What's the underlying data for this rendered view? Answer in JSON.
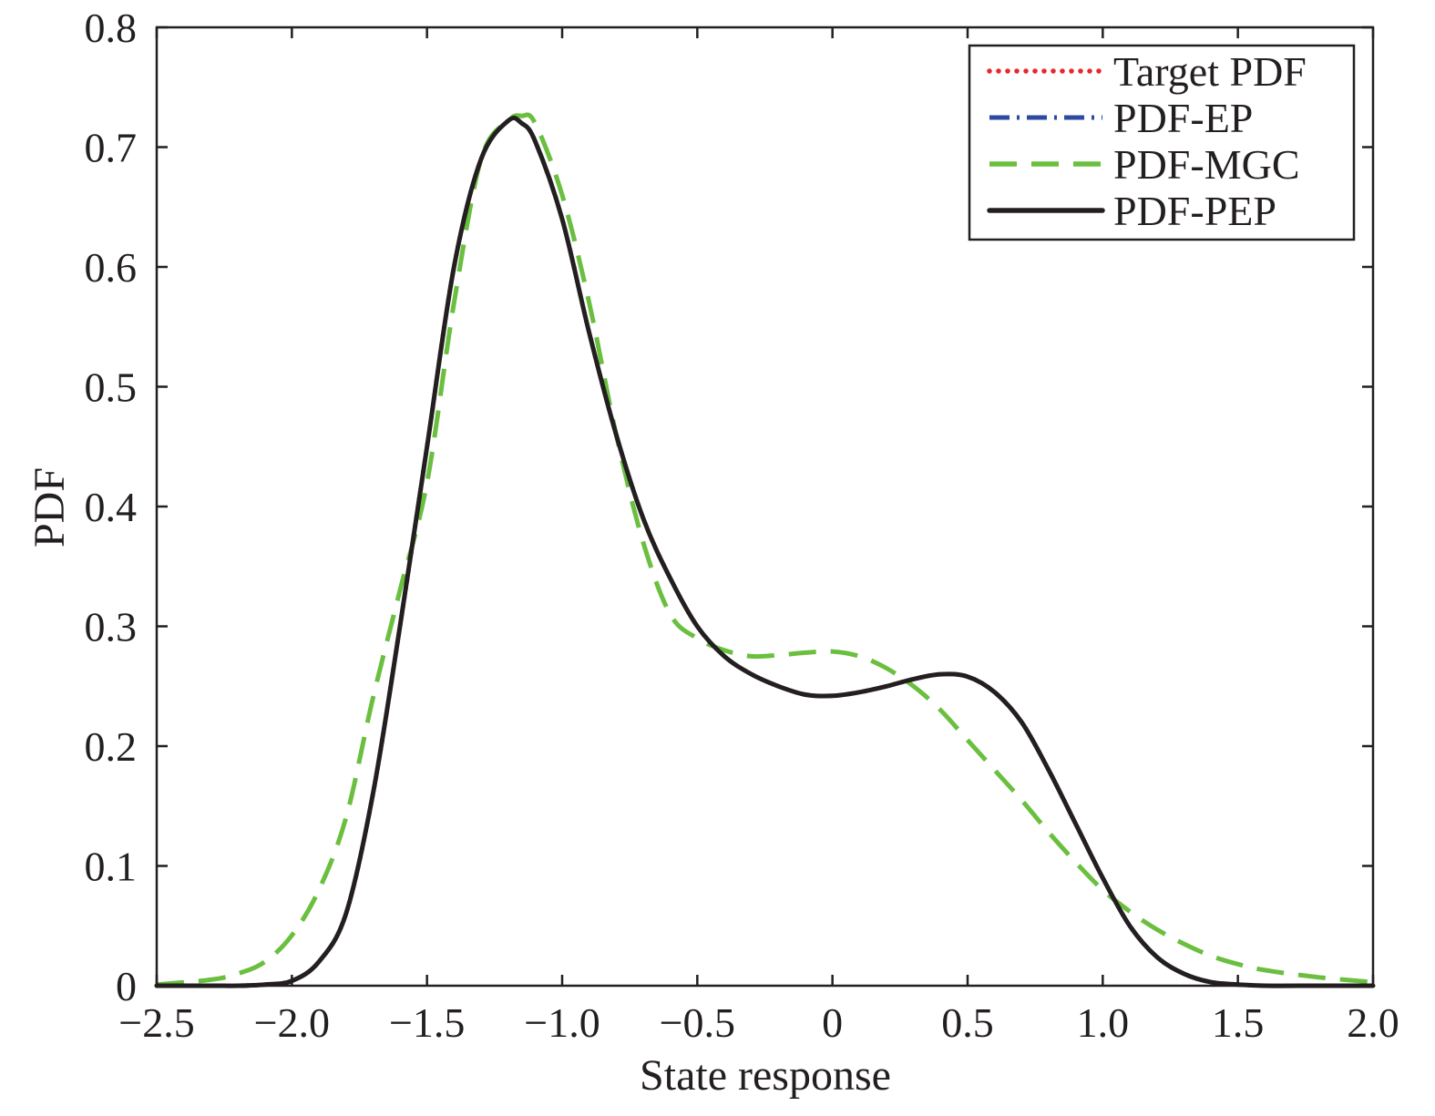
{
  "chart_data": {
    "type": "line",
    "title": "",
    "xlabel": "State response",
    "ylabel": "PDF",
    "xlim": [
      -2.5,
      2.0
    ],
    "ylim": [
      0,
      0.8
    ],
    "xticks": [
      -2.5,
      -2.0,
      -1.5,
      -1.0,
      -0.5,
      0,
      0.5,
      1.0,
      1.5,
      2.0
    ],
    "xtick_labels": [
      "−2.5",
      "−2.0",
      "−1.5",
      "−1.0",
      "−0.5",
      "0",
      "0.5",
      "1.0",
      "1.5",
      "2.0"
    ],
    "yticks": [
      0,
      0.1,
      0.2,
      0.3,
      0.4,
      0.5,
      0.6,
      0.7,
      0.8
    ],
    "ytick_labels": [
      "0",
      "0.1",
      "0.2",
      "0.3",
      "0.4",
      "0.5",
      "0.6",
      "0.7",
      "0.8"
    ],
    "grid": false,
    "legend": "top-right",
    "x": [
      -2.5,
      -2.3,
      -2.2,
      -2.1,
      -2.0,
      -1.9,
      -1.8,
      -1.7,
      -1.6,
      -1.5,
      -1.4,
      -1.3,
      -1.2,
      -1.15,
      -1.1,
      -1.0,
      -0.9,
      -0.8,
      -0.7,
      -0.6,
      -0.5,
      -0.4,
      -0.3,
      -0.2,
      -0.1,
      0.0,
      0.1,
      0.2,
      0.3,
      0.4,
      0.5,
      0.6,
      0.7,
      0.8,
      0.9,
      1.0,
      1.1,
      1.2,
      1.3,
      1.4,
      1.5,
      1.6,
      1.8,
      2.0
    ],
    "series": [
      {
        "name": "Target PDF",
        "color": "#e8262d",
        "style": "dotted",
        "values": [
          0,
          0,
          0,
          0.001,
          0.004,
          0.02,
          0.06,
          0.16,
          0.3,
          0.45,
          0.6,
          0.69,
          0.722,
          0.72,
          0.705,
          0.64,
          0.545,
          0.46,
          0.39,
          0.34,
          0.3,
          0.275,
          0.26,
          0.25,
          0.243,
          0.242,
          0.245,
          0.25,
          0.256,
          0.26,
          0.258,
          0.245,
          0.22,
          0.18,
          0.135,
          0.09,
          0.05,
          0.024,
          0.01,
          0.003,
          0.001,
          0,
          0,
          0
        ]
      },
      {
        "name": "PDF-EP",
        "color": "#2e4a9e",
        "style": "dashdot",
        "values": [
          0,
          0,
          0,
          0.001,
          0.004,
          0.02,
          0.06,
          0.16,
          0.3,
          0.45,
          0.6,
          0.69,
          0.722,
          0.72,
          0.705,
          0.64,
          0.545,
          0.46,
          0.39,
          0.34,
          0.3,
          0.275,
          0.26,
          0.25,
          0.243,
          0.242,
          0.245,
          0.25,
          0.256,
          0.26,
          0.258,
          0.245,
          0.22,
          0.18,
          0.135,
          0.09,
          0.05,
          0.024,
          0.01,
          0.003,
          0.001,
          0,
          0,
          0
        ]
      },
      {
        "name": "PDF-MGC",
        "color": "#6abf3f",
        "style": "dashed",
        "values": [
          0.001,
          0.005,
          0.01,
          0.02,
          0.042,
          0.08,
          0.14,
          0.24,
          0.33,
          0.42,
          0.57,
          0.69,
          0.722,
          0.726,
          0.72,
          0.66,
          0.57,
          0.46,
          0.37,
          0.31,
          0.29,
          0.28,
          0.275,
          0.276,
          0.278,
          0.279,
          0.275,
          0.265,
          0.25,
          0.23,
          0.205,
          0.18,
          0.155,
          0.128,
          0.103,
          0.08,
          0.062,
          0.047,
          0.035,
          0.025,
          0.018,
          0.013,
          0.007,
          0.003
        ]
      },
      {
        "name": "PDF-PEP",
        "color": "#231f20",
        "style": "solid",
        "values": [
          0,
          0,
          0,
          0.001,
          0.004,
          0.02,
          0.06,
          0.16,
          0.3,
          0.45,
          0.6,
          0.69,
          0.722,
          0.72,
          0.705,
          0.64,
          0.545,
          0.46,
          0.39,
          0.34,
          0.3,
          0.275,
          0.26,
          0.25,
          0.243,
          0.242,
          0.245,
          0.25,
          0.256,
          0.26,
          0.258,
          0.245,
          0.22,
          0.18,
          0.135,
          0.09,
          0.05,
          0.024,
          0.01,
          0.003,
          0.001,
          0,
          0,
          0
        ]
      }
    ]
  }
}
